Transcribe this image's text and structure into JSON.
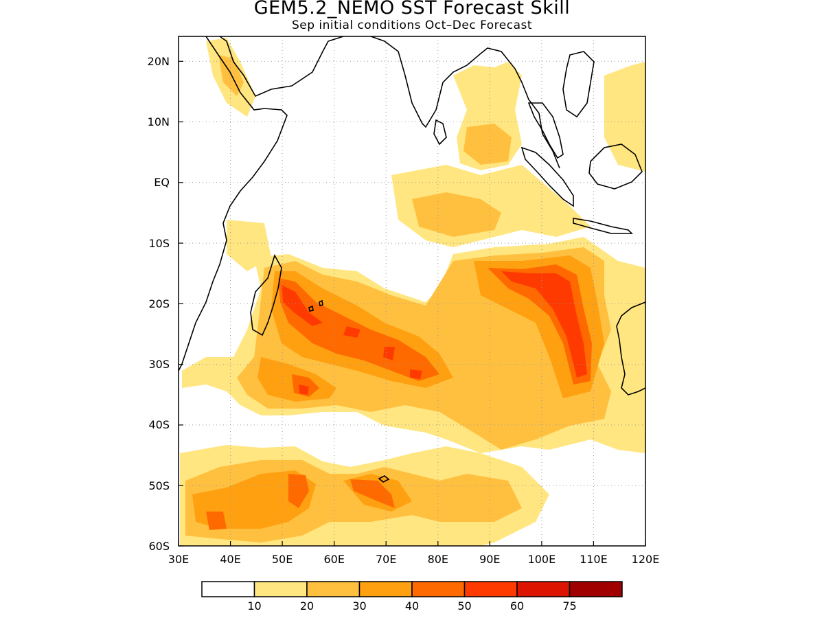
{
  "title": "GEM5.2_NEMO SST Forecast Skill",
  "subtitle": "Sep initial conditions  Oct–Dec Forecast",
  "map": {
    "lon_range": [
      30,
      120
    ],
    "lat_range": [
      -60,
      24
    ],
    "lon_ticks": [
      "30E",
      "40E",
      "50E",
      "60E",
      "70E",
      "80E",
      "90E",
      "100E",
      "110E",
      "120E"
    ],
    "lat_ticks": [
      "20N",
      "10N",
      "EQ",
      "10S",
      "20S",
      "30S",
      "40S",
      "50S",
      "60S"
    ],
    "gridlines": "dotted"
  },
  "colorbar": {
    "labels": [
      "10",
      "20",
      "30",
      "40",
      "50",
      "60",
      "75"
    ],
    "colors": [
      "#ffffff",
      "#ffe680",
      "#ffc040",
      "#ffa010",
      "#ff6a00",
      "#ff3a00",
      "#dd1500",
      "#a00000"
    ]
  }
}
